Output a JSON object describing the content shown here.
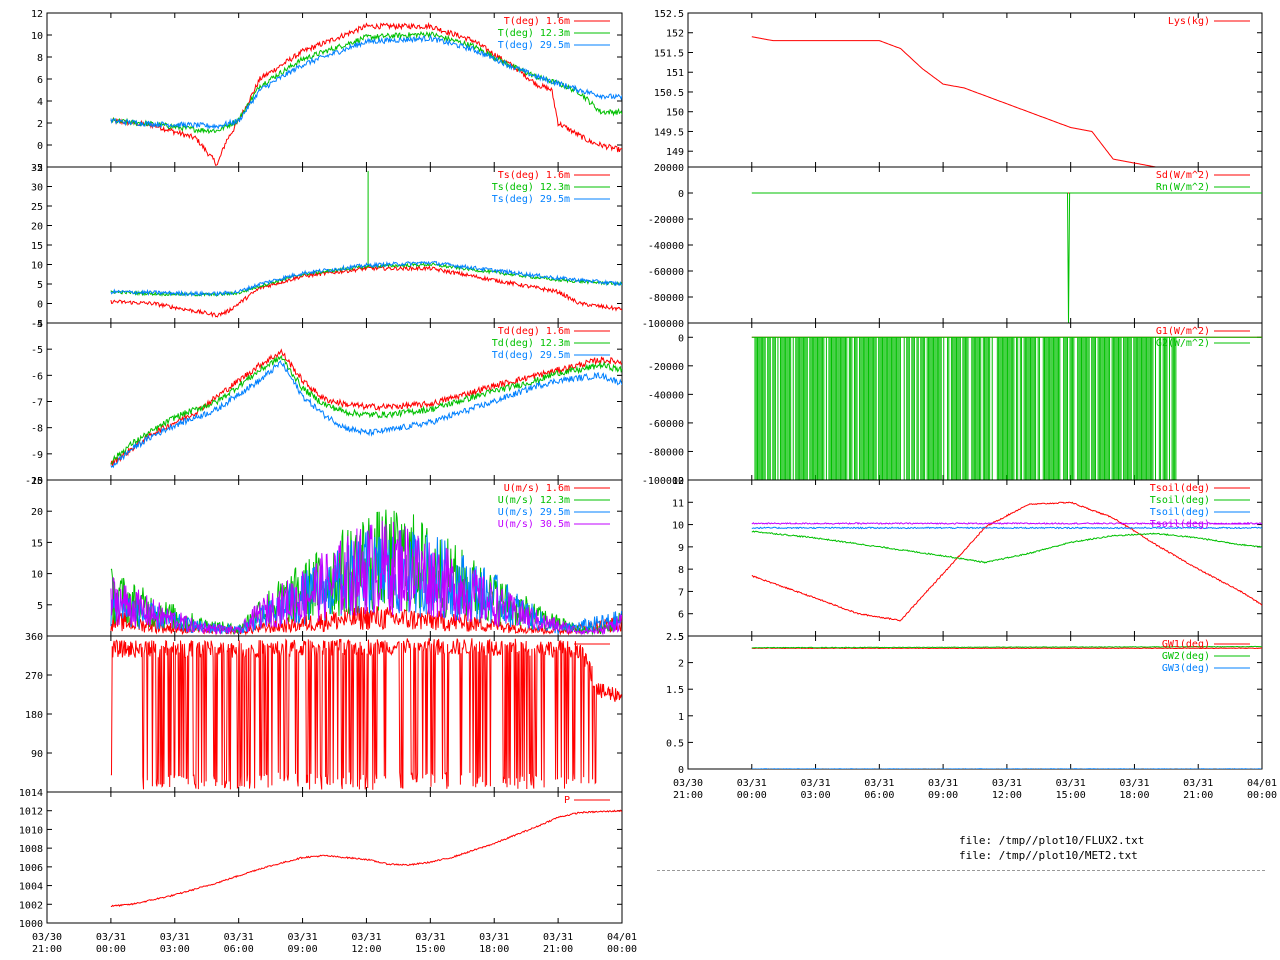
{
  "colors": {
    "red": "#ff0000",
    "green": "#00c000",
    "blue": "#0080ff",
    "purple": "#c000ff",
    "axis": "#000000"
  },
  "time_axis": {
    "x_start_hours": -3,
    "x_end_hours": 24,
    "ticks": [
      {
        "date": "03/30",
        "time": "21:00"
      },
      {
        "date": "03/31",
        "time": "00:00"
      },
      {
        "date": "03/31",
        "time": "03:00"
      },
      {
        "date": "03/31",
        "time": "06:00"
      },
      {
        "date": "03/31",
        "time": "09:00"
      },
      {
        "date": "03/31",
        "time": "12:00"
      },
      {
        "date": "03/31",
        "time": "15:00"
      },
      {
        "date": "03/31",
        "time": "18:00"
      },
      {
        "date": "03/31",
        "time": "21:00"
      },
      {
        "date": "04/01",
        "time": "00:00"
      }
    ]
  },
  "footer": {
    "file1": "file: /tmp//plot10/FLUX2.txt",
    "file2": "file: /tmp//plot10/MET2.txt"
  },
  "chart_data": [
    {
      "type": "line",
      "id": "T",
      "ylim": [
        -2,
        12
      ],
      "yticks": [
        "-2",
        "0",
        "2",
        "4",
        "6",
        "8",
        "10",
        "12"
      ],
      "series": [
        {
          "name": "T(deg)  1.6m",
          "color": "red",
          "x": [
            0,
            2,
            4,
            5,
            5.4,
            6,
            7,
            9,
            12,
            15,
            17,
            19,
            20,
            20.7,
            21,
            22.5,
            23,
            24
          ],
          "y": [
            2.2,
            1.8,
            0.6,
            -1.8,
            0.3,
            2.2,
            6,
            8.5,
            10.8,
            10.8,
            9.5,
            7,
            5.5,
            5,
            2,
            0.3,
            0,
            -0.5
          ]
        },
        {
          "name": "T(deg) 12.3m",
          "color": "green",
          "x": [
            0,
            2,
            4,
            5,
            5.4,
            6,
            7,
            9,
            12,
            15,
            17,
            19,
            20,
            21,
            22,
            23,
            24
          ],
          "y": [
            2.2,
            1.9,
            1.4,
            1.3,
            1.7,
            2.3,
            5.4,
            7.8,
            9.8,
            10.1,
            9,
            7,
            6.2,
            5.6,
            4.8,
            3,
            3
          ]
        },
        {
          "name": "T(deg) 29.5m",
          "color": "blue",
          "x": [
            0,
            2,
            4,
            5,
            5.4,
            6,
            7,
            9,
            12,
            15,
            17,
            19,
            20,
            21,
            22,
            23,
            24
          ],
          "y": [
            2.2,
            1.9,
            1.8,
            1.7,
            1.9,
            2.2,
            5,
            7.3,
            9.4,
            9.7,
            8.7,
            7,
            6.2,
            5.6,
            5,
            4.5,
            4.3
          ]
        }
      ]
    },
    {
      "type": "line",
      "id": "Ts",
      "ylim": [
        -5,
        35
      ],
      "yticks": [
        "-5",
        "0",
        "5",
        "10",
        "15",
        "20",
        "25",
        "30",
        "35"
      ],
      "series": [
        {
          "name": "Ts(deg)  1.6m",
          "color": "red",
          "x": [
            0,
            2,
            3,
            4,
            5,
            5.5,
            6,
            7,
            9,
            12,
            15,
            18,
            20,
            21,
            22,
            24
          ],
          "y": [
            0.5,
            0,
            -1,
            -2,
            -3,
            -2,
            0,
            4,
            7,
            9,
            9,
            6,
            4,
            3,
            0,
            -1.5
          ]
        },
        {
          "name": "Ts(deg) 12.3m",
          "color": "green",
          "x": [
            0,
            2,
            4,
            5,
            6,
            7,
            9,
            12,
            12.05,
            12.1,
            12.15,
            15,
            18,
            21,
            24
          ],
          "y": [
            3,
            2.5,
            2.3,
            2.3,
            2.7,
            4.5,
            7.5,
            9.5,
            34,
            9.5,
            9.5,
            10,
            8,
            6,
            5
          ]
        },
        {
          "name": "Ts(deg) 29.5m",
          "color": "blue",
          "x": [
            0,
            2,
            4,
            5,
            6,
            7,
            9,
            12,
            15,
            18,
            21,
            24
          ],
          "y": [
            3,
            2.8,
            2.5,
            2.5,
            3,
            5,
            7.8,
            9.8,
            10.5,
            8.5,
            6.5,
            5
          ]
        }
      ]
    },
    {
      "type": "line",
      "id": "Td",
      "ylim": [
        -10,
        -4
      ],
      "yticks": [
        "-10",
        "-9",
        "-8",
        "-7",
        "-6",
        "-5",
        "-4"
      ],
      "series": [
        {
          "name": "Td(deg)  1.6m",
          "color": "red",
          "x": [
            0,
            1,
            2,
            3,
            4,
            5,
            6,
            7,
            8,
            9,
            10,
            11,
            12,
            13,
            15,
            18,
            20,
            21,
            22,
            23,
            24
          ],
          "y": [
            -9.4,
            -8.8,
            -8.2,
            -7.8,
            -7.4,
            -6.8,
            -6.2,
            -5.6,
            -5.1,
            -6.2,
            -6.9,
            -7.1,
            -7.2,
            -7.2,
            -7.1,
            -6.4,
            -6,
            -5.8,
            -5.6,
            -5.4,
            -5.5
          ]
        },
        {
          "name": "Td(deg) 12.3m",
          "color": "green",
          "x": [
            0,
            1,
            2,
            3,
            4,
            5,
            6,
            7,
            8,
            9,
            10,
            11,
            12,
            13,
            15,
            18,
            20,
            21,
            22,
            23,
            24
          ],
          "y": [
            -9.3,
            -8.6,
            -8.1,
            -7.6,
            -7.3,
            -7,
            -6.4,
            -5.8,
            -5.3,
            -6.5,
            -7.1,
            -7.4,
            -7.5,
            -7.5,
            -7.3,
            -6.6,
            -6.2,
            -5.9,
            -5.8,
            -5.6,
            -5.8
          ]
        },
        {
          "name": "Td(deg) 29.5m",
          "color": "blue",
          "x": [
            0,
            1,
            2,
            3,
            4,
            5,
            6,
            7,
            8,
            9,
            10,
            11,
            12,
            13,
            15,
            18,
            20,
            21,
            22,
            23,
            24
          ],
          "y": [
            -9.5,
            -8.8,
            -8.3,
            -7.9,
            -7.6,
            -7.3,
            -6.7,
            -6.2,
            -5.5,
            -6.8,
            -7.5,
            -8,
            -8.2,
            -8.1,
            -7.8,
            -7,
            -6.4,
            -6.2,
            -6.1,
            -6,
            -6.3
          ]
        }
      ]
    },
    {
      "type": "line",
      "id": "U",
      "ylim": [
        0,
        25
      ],
      "yticks": [
        "5",
        "10",
        "15",
        "20",
        "25"
      ],
      "series": [
        {
          "name": "U(m/s)  1.6m",
          "color": "red",
          "x": [
            0,
            3,
            6,
            9,
            12,
            15,
            18,
            21,
            24
          ],
          "y": [
            2.5,
            1.2,
            0.8,
            2,
            3,
            2.5,
            1.8,
            0.8,
            2
          ]
        },
        {
          "name": "U(m/s) 12.3m",
          "color": "green",
          "x": [
            0,
            2,
            4,
            6,
            7,
            9,
            12,
            14,
            16,
            18,
            20,
            22,
            23,
            24
          ],
          "y": [
            6.5,
            4,
            2,
            1,
            4,
            7,
            12,
            12,
            9,
            6,
            3,
            1,
            1,
            2.5
          ]
        },
        {
          "name": "U(m/s) 29.5m",
          "color": "blue",
          "x": [
            0,
            2,
            4,
            6,
            9,
            12,
            15,
            18,
            21,
            24
          ],
          "y": [
            5,
            3,
            1.5,
            1,
            6,
            10,
            10,
            6,
            1,
            2.5
          ]
        },
        {
          "name": "U(m/s) 30.5m",
          "color": "purple",
          "x": [
            0,
            2,
            4,
            6,
            7,
            9,
            12,
            14,
            16,
            18,
            20,
            22,
            23,
            24
          ],
          "y": [
            6,
            3.5,
            1.5,
            0.8,
            3.5,
            6.5,
            11,
            11,
            8,
            5,
            2.5,
            0.8,
            0.8,
            2.5
          ]
        }
      ]
    },
    {
      "type": "line",
      "id": "Dir",
      "ylim": [
        0,
        360
      ],
      "yticks": [
        "90",
        "180",
        "270",
        "360"
      ],
      "series": [
        {
          "name": "",
          "color": "red",
          "x": [
            0,
            6,
            12,
            18,
            22,
            23,
            24
          ],
          "y": [
            330,
            330,
            335,
            335,
            330,
            230,
            225
          ]
        }
      ]
    },
    {
      "type": "line",
      "id": "P",
      "ylim": [
        1000,
        1014
      ],
      "yticks": [
        "1000",
        "1002",
        "1004",
        "1006",
        "1008",
        "1010",
        "1012",
        "1014"
      ],
      "series": [
        {
          "name": "P",
          "color": "red",
          "x": [
            0,
            1,
            3,
            5,
            7,
            9,
            10,
            12,
            13,
            14,
            15,
            16,
            18,
            20,
            21,
            22,
            24
          ],
          "y": [
            1001.8,
            1002,
            1003,
            1004.3,
            1005.8,
            1007,
            1007.2,
            1006.8,
            1006.3,
            1006.2,
            1006.5,
            1007,
            1008.5,
            1010.3,
            1011.3,
            1011.8,
            1012
          ]
        }
      ]
    },
    {
      "type": "line",
      "id": "Lys",
      "ylim": [
        148.6,
        152.5
      ],
      "yticks": [
        "149",
        "149.5",
        "150",
        "150.5",
        "151",
        "151.5",
        "152",
        "152.5"
      ],
      "series": [
        {
          "name": "Lys(kg)",
          "color": "red",
          "x": [
            0,
            1,
            2,
            3,
            4,
            5,
            6,
            7,
            8,
            9,
            10,
            11,
            12,
            13,
            14,
            15,
            16,
            17,
            18,
            19,
            20,
            24
          ],
          "y": [
            151.9,
            151.8,
            151.8,
            151.8,
            151.8,
            151.8,
            151.8,
            151.6,
            151.1,
            150.7,
            150.6,
            150.4,
            150.2,
            150,
            149.8,
            149.6,
            149.5,
            148.8,
            148.7,
            148.6,
            148.6,
            148.6
          ]
        }
      ]
    },
    {
      "type": "line",
      "id": "Rad",
      "ylim": [
        -100000,
        20000
      ],
      "yticks": [
        "-100000",
        "-80000",
        "-60000",
        "-40000",
        "-20000",
        "0",
        "20000"
      ],
      "series": [
        {
          "name": "Sd(W/m^2)",
          "color": "red",
          "x": [
            7,
            8,
            15,
            16
          ],
          "y": [
            0,
            0,
            0,
            0
          ]
        },
        {
          "name": "Rn(W/m^2)",
          "color": "green",
          "x": [
            0,
            14.9,
            14.9,
            14.95,
            14.95,
            24
          ],
          "y": [
            0,
            0,
            -100000,
            -100000,
            0,
            0
          ]
        }
      ]
    },
    {
      "type": "line",
      "id": "G",
      "ylim": [
        -100000,
        10000
      ],
      "yticks": [
        "-100000",
        "-80000",
        "-60000",
        "-40000",
        "-20000",
        "0"
      ],
      "series": [
        {
          "name": "G1(W/m^2)",
          "color": "red",
          "x": [
            0,
            24
          ],
          "y": [
            0,
            0
          ]
        },
        {
          "name": "G2(W/m^2)",
          "color": "green",
          "x": [
            0,
            24
          ],
          "y": [
            0,
            0
          ]
        }
      ]
    },
    {
      "type": "line",
      "id": "Tsoil",
      "ylim": [
        5,
        12
      ],
      "yticks": [
        "5",
        "6",
        "7",
        "8",
        "9",
        "10",
        "11",
        "12"
      ],
      "series": [
        {
          "name": "Tsoil(deg)",
          "color": "red",
          "x": [
            0,
            3,
            5,
            7,
            9,
            11,
            13,
            15,
            17,
            19,
            21,
            23,
            24
          ],
          "y": [
            7.7,
            6.7,
            6,
            5.7,
            7.8,
            9.9,
            10.9,
            11,
            10.3,
            9.1,
            8,
            7,
            6.4
          ]
        },
        {
          "name": "Tsoil(deg)",
          "color": "green",
          "x": [
            0,
            3,
            6,
            9,
            11,
            13,
            15,
            17,
            19,
            21,
            23,
            24
          ],
          "y": [
            9.7,
            9.4,
            9,
            8.6,
            8.3,
            8.7,
            9.2,
            9.5,
            9.6,
            9.4,
            9.1,
            9
          ]
        },
        {
          "name": "Tsoil(deg)",
          "color": "blue",
          "x": [
            0,
            24
          ],
          "y": [
            9.85,
            9.85
          ]
        },
        {
          "name": "Tsoil(deg)",
          "color": "purple",
          "x": [
            0,
            24
          ],
          "y": [
            10.05,
            10.05
          ]
        }
      ]
    },
    {
      "type": "line",
      "id": "GW",
      "ylim": [
        0,
        2.5
      ],
      "yticks": [
        "0",
        "0.5",
        "1",
        "1.5",
        "2",
        "2.5"
      ],
      "series": [
        {
          "name": "GW1(deg)",
          "color": "red",
          "x": [
            0,
            24
          ],
          "y": [
            2.27,
            2.27
          ]
        },
        {
          "name": "GW2(deg)",
          "color": "green",
          "x": [
            0,
            24
          ],
          "y": [
            2.28,
            2.3
          ]
        },
        {
          "name": "GW3(deg)",
          "color": "blue",
          "x": [
            0,
            24
          ],
          "y": [
            0,
            0
          ]
        }
      ]
    }
  ]
}
